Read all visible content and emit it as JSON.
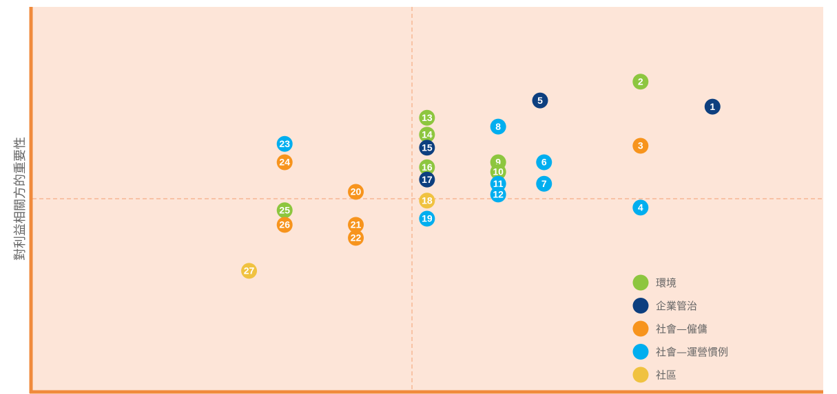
{
  "chart_data": {
    "type": "scatter",
    "ylabel": "對利益相關方的重要性",
    "xlim": [
      0,
      100
    ],
    "ylim": [
      0,
      100
    ],
    "ref_x": 48,
    "ref_y": 50,
    "series": [
      {
        "name": "環境",
        "color": "#8dc63f",
        "labels": [
          "2",
          "9",
          "10",
          "13",
          "14",
          "16",
          "25"
        ],
        "x": [
          76.9,
          58.9,
          58.9,
          49.9,
          49.9,
          49.9,
          31.9
        ],
        "y": [
          80.5,
          59.5,
          57.0,
          71.1,
          66.7,
          58.2,
          47.0
        ]
      },
      {
        "name": "企業管治",
        "color": "#0d3f7f",
        "labels": [
          "1",
          "5",
          "15",
          "17"
        ],
        "x": [
          86.0,
          64.2,
          49.9,
          49.9
        ],
        "y": [
          74.0,
          75.6,
          63.3,
          55.0
        ]
      },
      {
        "name": "社會—僱傭",
        "color": "#f7941d",
        "labels": [
          "3",
          "20",
          "21",
          "22",
          "24",
          "26"
        ],
        "x": [
          76.9,
          40.9,
          40.9,
          40.9,
          31.9,
          31.9
        ],
        "y": [
          63.8,
          51.8,
          43.2,
          39.8,
          59.5,
          43.2
        ]
      },
      {
        "name": "社會—運營慣例",
        "color": "#00aeef",
        "labels": [
          "4",
          "6",
          "7",
          "8",
          "11",
          "12",
          "19",
          "23"
        ],
        "x": [
          76.9,
          64.7,
          64.7,
          58.9,
          58.9,
          58.9,
          49.9,
          31.9
        ],
        "y": [
          47.7,
          59.5,
          53.9,
          68.8,
          53.9,
          51.1,
          44.8,
          64.3
        ]
      },
      {
        "name": "社區",
        "color": "#f0c240",
        "labels": [
          "18",
          "27"
        ],
        "x": [
          49.9,
          27.4
        ],
        "y": [
          49.5,
          31.2
        ]
      }
    ]
  }
}
